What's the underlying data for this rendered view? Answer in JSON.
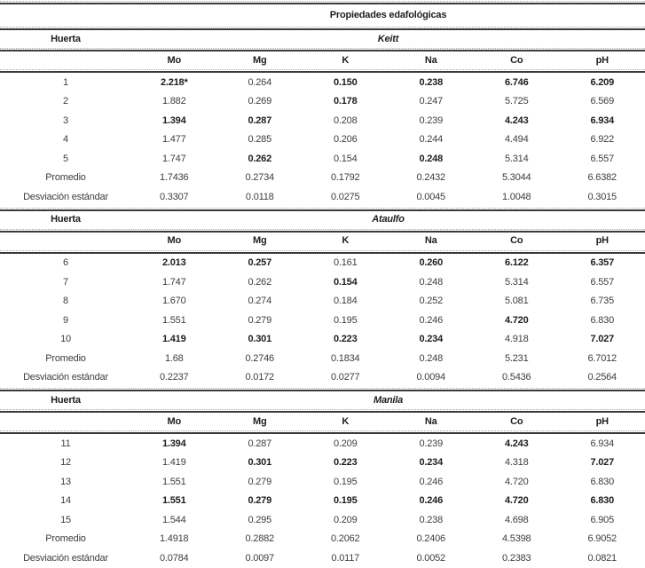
{
  "page": {
    "background_color": "#ffffff",
    "text_color": "#3d3d42",
    "bold_text_color": "#1d1d22",
    "rule_solid_color": "#3a3a3e",
    "rule_dotted_color": "#a8a8a8"
  },
  "table": {
    "title": "Propiedades edafológicas",
    "row_header_label": "Huerta",
    "columns": [
      "Mo",
      "Mg",
      "K",
      "Na",
      "Co",
      "pH"
    ],
    "sections": [
      {
        "variety": "Keitt",
        "rows": [
          {
            "label": "1",
            "values": [
              "2.218*",
              "0.264",
              "0.150",
              "0.238",
              "6.746",
              "6.209"
            ],
            "bold": [
              true,
              false,
              true,
              true,
              true,
              true
            ]
          },
          {
            "label": "2",
            "values": [
              "1.882",
              "0.269",
              "0.178",
              "0.247",
              "5.725",
              "6.569"
            ],
            "bold": [
              false,
              false,
              true,
              false,
              false,
              false
            ]
          },
          {
            "label": "3",
            "values": [
              "1.394",
              "0.287",
              "0.208",
              "0.239",
              "4.243",
              "6.934"
            ],
            "bold": [
              true,
              true,
              false,
              false,
              true,
              true
            ]
          },
          {
            "label": "4",
            "values": [
              "1.477",
              "0.285",
              "0.206",
              "0.244",
              "4.494",
              "6.922"
            ],
            "bold": [
              false,
              false,
              false,
              false,
              false,
              false
            ]
          },
          {
            "label": "5",
            "values": [
              "1.747",
              "0.262",
              "0.154",
              "0.248",
              "5.314",
              "6.557"
            ],
            "bold": [
              false,
              true,
              false,
              true,
              false,
              false
            ]
          },
          {
            "label": "Promedio",
            "values": [
              "1.7436",
              "0.2734",
              "0.1792",
              "0.2432",
              "5.3044",
              "6.6382"
            ],
            "bold": [
              false,
              false,
              false,
              false,
              false,
              false
            ]
          },
          {
            "label": "Desviación estándar",
            "values": [
              "0.3307",
              "0.0118",
              "0.0275",
              "0.0045",
              "1.0048",
              "0.3015"
            ],
            "bold": [
              false,
              false,
              false,
              false,
              false,
              false
            ]
          }
        ]
      },
      {
        "variety": "Ataulfo",
        "rows": [
          {
            "label": "6",
            "values": [
              "2.013",
              "0.257",
              "0.161",
              "0.260",
              "6.122",
              "6.357"
            ],
            "bold": [
              true,
              true,
              false,
              true,
              true,
              true
            ]
          },
          {
            "label": "7",
            "values": [
              "1.747",
              "0.262",
              "0.154",
              "0.248",
              "5.314",
              "6.557"
            ],
            "bold": [
              false,
              false,
              true,
              false,
              false,
              false
            ]
          },
          {
            "label": "8",
            "values": [
              "1.670",
              "0.274",
              "0.184",
              "0.252",
              "5.081",
              "6.735"
            ],
            "bold": [
              false,
              false,
              false,
              false,
              false,
              false
            ]
          },
          {
            "label": "9",
            "values": [
              "1.551",
              "0.279",
              "0.195",
              "0.246",
              "4.720",
              "6.830"
            ],
            "bold": [
              false,
              false,
              false,
              false,
              true,
              false
            ]
          },
          {
            "label": "10",
            "values": [
              "1.419",
              "0.301",
              "0.223",
              "0.234",
              "4.918",
              "7.027"
            ],
            "bold": [
              true,
              true,
              true,
              true,
              false,
              true
            ]
          },
          {
            "label": "Promedio",
            "values": [
              "1.68",
              "0.2746",
              "0.1834",
              "0.248",
              "5.231",
              "6.7012"
            ],
            "bold": [
              false,
              false,
              false,
              false,
              false,
              false
            ]
          },
          {
            "label": "Desviación estándar",
            "values": [
              "0.2237",
              "0.0172",
              "0.0277",
              "0.0094",
              "0.5436",
              "0.2564"
            ],
            "bold": [
              false,
              false,
              false,
              false,
              false,
              false
            ]
          }
        ]
      },
      {
        "variety": "Manila",
        "rows": [
          {
            "label": "11",
            "values": [
              "1.394",
              "0.287",
              "0.209",
              "0.239",
              "4.243",
              "6.934"
            ],
            "bold": [
              true,
              false,
              false,
              false,
              true,
              false
            ]
          },
          {
            "label": "12",
            "values": [
              "1.419",
              "0.301",
              "0.223",
              "0.234",
              "4.318",
              "7.027"
            ],
            "bold": [
              false,
              true,
              true,
              true,
              false,
              true
            ]
          },
          {
            "label": "13",
            "values": [
              "1.551",
              "0.279",
              "0.195",
              "0.246",
              "4.720",
              "6.830"
            ],
            "bold": [
              false,
              false,
              false,
              false,
              false,
              false
            ]
          },
          {
            "label": "14",
            "values": [
              "1.551",
              "0.279",
              "0.195",
              "0.246",
              "4.720",
              "6.830"
            ],
            "bold": [
              true,
              true,
              true,
              true,
              true,
              true
            ]
          },
          {
            "label": "15",
            "values": [
              "1.544",
              "0.295",
              "0.209",
              "0.238",
              "4.698",
              "6.905"
            ],
            "bold": [
              false,
              false,
              false,
              false,
              false,
              false
            ]
          },
          {
            "label": "Promedio",
            "values": [
              "1.4918",
              "0.2882",
              "0.2062",
              "0.2406",
              "4.5398",
              "6.9052"
            ],
            "bold": [
              false,
              false,
              false,
              false,
              false,
              false
            ]
          },
          {
            "label": "Desviación estándar",
            "values": [
              "0.0784",
              "0.0097",
              "0.0117",
              "0.0052",
              "0.2383",
              "0.0821"
            ],
            "bold": [
              false,
              false,
              false,
              false,
              false,
              false
            ]
          }
        ]
      }
    ]
  }
}
